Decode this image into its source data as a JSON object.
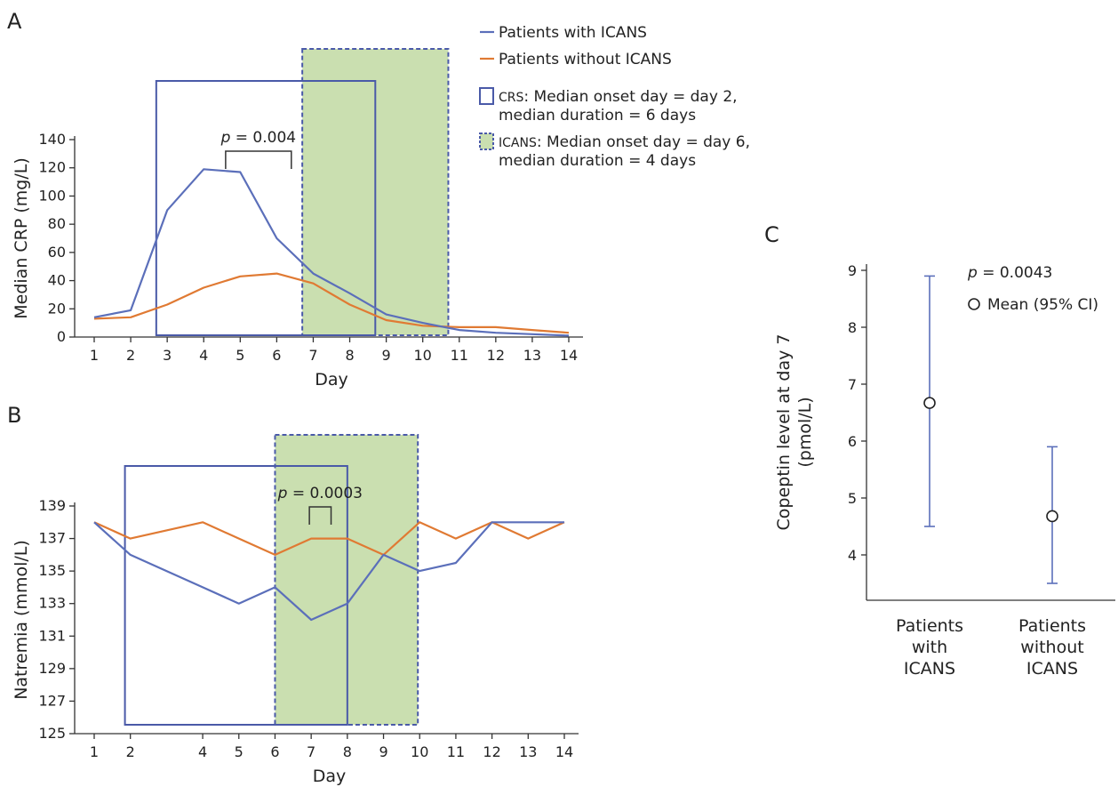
{
  "colors": {
    "icans": "#5b6fba",
    "no_icans": "#e07a33",
    "crs_box": "#4a5aa8",
    "icans_fill": "#cadfb0",
    "icans_border": "#4a5aa8"
  },
  "chart_data": [
    {
      "panel": "A",
      "type": "line",
      "xlabel": "Day",
      "ylabel": "Median CRP (mg/L)",
      "xlim": [
        1,
        14
      ],
      "ylim": [
        0,
        140
      ],
      "x_ticks": [
        "1",
        "2",
        "3",
        "4",
        "5",
        "6",
        "7",
        "8",
        "9",
        "10",
        "11",
        "12",
        "13",
        "14"
      ],
      "y_ticks": [
        "0",
        "20",
        "40",
        "60",
        "80",
        "100",
        "120",
        "140"
      ],
      "x": [
        1,
        2,
        3,
        4,
        5,
        6,
        7,
        8,
        9,
        10,
        11,
        12,
        13,
        14
      ],
      "series": [
        {
          "name": "Patients with ICANS",
          "values": [
            14,
            19,
            90,
            119,
            117,
            70,
            45,
            31,
            16,
            10,
            5,
            3,
            2,
            1
          ]
        },
        {
          "name": "Patients without ICANS",
          "values": [
            13,
            14,
            23,
            35,
            43,
            45,
            38,
            23,
            12,
            8,
            7,
            7,
            5,
            3
          ]
        }
      ],
      "crs_window": [
        2.7,
        8.7
      ],
      "icans_window": [
        6.7,
        10.7
      ],
      "pvalue": {
        "label": "p",
        "text": " = 0.004",
        "bracket_x": [
          4.6,
          6.4
        ],
        "y": 118
      },
      "legend": {
        "icans_line": "Patients with ICANS",
        "no_icans_line": "Patients without ICANS",
        "crs_abbr": "CRS",
        "crs_line1": ": Median onset day = day 2,",
        "crs_line2": "median duration = 6 days",
        "icans_abbr": "ICANS",
        "icans_line1": ": Median onset day = day 6,",
        "icans_line2": "median duration = 4 days"
      }
    },
    {
      "panel": "B",
      "type": "line",
      "xlabel": "Day",
      "ylabel": "Natremia (mmol/L)",
      "xlim": [
        1,
        14
      ],
      "ylim": [
        125,
        139
      ],
      "x_ticks": [
        "1",
        "2",
        "4",
        "5",
        "6",
        "7",
        "8",
        "9",
        "10",
        "11",
        "12",
        "13",
        "14"
      ],
      "y_ticks": [
        "125",
        "127",
        "129",
        "131",
        "133",
        "135",
        "137",
        "139"
      ],
      "x": [
        1,
        2,
        4,
        5,
        6,
        7,
        8,
        9,
        10,
        11,
        12,
        13,
        14
      ],
      "series": [
        {
          "name": "Patients with ICANS",
          "values": [
            138,
            136,
            134,
            133,
            134,
            132,
            133,
            136,
            135,
            135.5,
            138,
            138,
            138
          ]
        },
        {
          "name": "Patients without ICANS",
          "values": [
            138,
            137,
            138,
            137,
            136,
            137,
            137,
            136,
            138,
            137,
            138,
            137,
            138
          ]
        }
      ],
      "crs_window": [
        1.85,
        8.0
      ],
      "icans_window": [
        6.0,
        9.95
      ],
      "pvalue": {
        "label": "p",
        "text": " = 0.0003",
        "bracket_x": [
          6.95,
          7.55
        ],
        "y": 137
      }
    },
    {
      "panel": "C",
      "type": "scatter",
      "ylabel_line1": "Copeptin level at day 7",
      "ylabel_line2": "(pmol/L)",
      "categories": [
        [
          "Patients",
          "with",
          "ICANS"
        ],
        [
          "Patients",
          "without",
          "ICANS"
        ]
      ],
      "ylim": [
        3.3,
        9.1
      ],
      "y_ticks": [
        "4",
        "5",
        "6",
        "7",
        "8",
        "9"
      ],
      "points": [
        {
          "mean": 6.67,
          "ci_low": 4.5,
          "ci_high": 8.9
        },
        {
          "mean": 4.68,
          "ci_low": 3.5,
          "ci_high": 5.9
        }
      ],
      "pvalue": {
        "label": "p",
        "text": " = 0.0043"
      },
      "legend": "Mean (95% CI)"
    }
  ],
  "panels": {
    "a": "A",
    "b": "B",
    "c": "C"
  }
}
